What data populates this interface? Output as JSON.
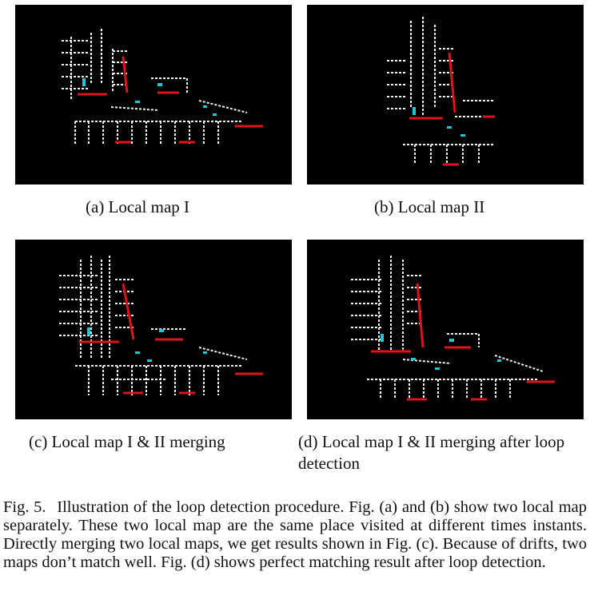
{
  "figures": [
    {
      "id": "a",
      "caption": "(a)  Local map I"
    },
    {
      "id": "b",
      "caption": "(b)  Local map II"
    },
    {
      "id": "c",
      "caption": "(c)  Local map I & II merging"
    },
    {
      "id": "d",
      "caption": "(d)  Local map I & II merging after loop detection"
    }
  ],
  "figure_caption": {
    "label": "Fig. 5.",
    "text": "Illustration of the loop detection procedure. Fig. (a) and (b) show two local map separately. These two local map are the same place visited at different times instants. Directly merging two local maps, we get results shown in Fig. (c). Because of drifts, two maps don’t match well. Fig. (d) shows perfect matching result after loop detection."
  },
  "colors": {
    "background": "#000000",
    "points_white": "#f2f2f2",
    "points_red": "#e0121b",
    "points_cyan": "#27c6d6"
  }
}
